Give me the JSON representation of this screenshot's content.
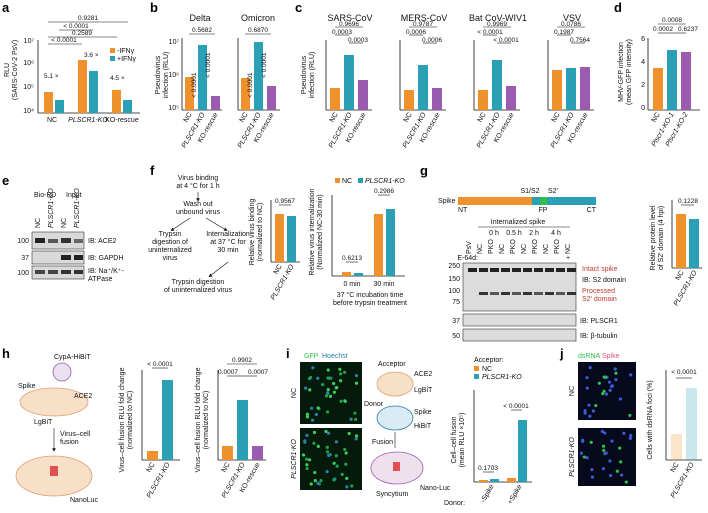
{
  "figure": {
    "panels": {
      "a": {
        "label": "a",
        "ylabel": "RLU\n(SARS-CoV-2 PsV)",
        "legend": [
          "-IFNγ",
          "+IFNγ"
        ],
        "categories": [
          "NC",
          "PLSCR1-KO",
          "KO-rescue"
        ],
        "pvalues": [
          "0.9281",
          "< 0.0001",
          "0.2589",
          "< 0.0001"
        ],
        "folds": [
          "5.1 ×",
          "3.6 ×",
          "4.5 ×"
        ],
        "yticks": [
          "10⁴",
          "10⁵",
          "10⁶",
          "10⁷"
        ]
      },
      "b": {
        "label": "b",
        "ylabel": "Pseudovirus\ninfection (RLU)",
        "titles": [
          "Delta",
          "Omicron"
        ],
        "pvalues_top": [
          "0.5682",
          "0.6870"
        ],
        "pvalues_side": [
          "< 0.0001",
          "< 0.0001",
          "< 0.0001",
          "< 0.0001"
        ],
        "categories": [
          "NC",
          "PLSCR1-KO",
          "KO-rescue"
        ],
        "yticks": [
          "10⁵",
          "10⁶",
          "10⁷"
        ]
      },
      "c": {
        "label": "c",
        "ylabel": "Pseudovirus\ninfection (RLU)",
        "titles": [
          "SARS-CoV",
          "MERS-CoV",
          "Bat CoV-WIV1",
          "VSV"
        ],
        "pvalues": [
          [
            "0.9696",
            "0.0003",
            "0.0003"
          ],
          [
            "0.9787",
            "0.0006",
            "0.0006"
          ],
          [
            "0.9969",
            "< 0.0001",
            "< 0.0001"
          ],
          [
            "0.0786",
            "0.1987",
            "0.7564"
          ]
        ],
        "categories": [
          "NC",
          "PLSCR1-KO",
          "KO-rescue"
        ]
      },
      "d": {
        "label": "d",
        "ylabel": "MHV-GFP infection\n(mean GFP intensity)",
        "pvalues": [
          "0.0008",
          "0.0002",
          "0.6237"
        ],
        "categories": [
          "NC",
          "Plscr1-KO-1",
          "Plscr1-KO-2"
        ],
        "yticks": [
          "0",
          "2",
          "4",
          "6"
        ]
      },
      "e": {
        "label": "e",
        "header": [
          "Bio-PD",
          "Input"
        ],
        "lanes": [
          "NC",
          "PLSCR1-KO",
          "NC",
          "PLSCR1-KO"
        ],
        "blots": [
          "IB: ACE2",
          "IB: GAPDH",
          "IB: Na⁺/K⁺-\nATPase"
        ],
        "markers": [
          "100",
          "37",
          "100"
        ]
      },
      "f": {
        "label": "f",
        "flow": [
          "Virus binding\nat 4 °C for 1 h",
          "Wash out\nunbound virus",
          "Trypsin\ndigestion of\nuninternalized\nvirus",
          "Internalization\nat 37 °C for\n30 min",
          "Trypsin digestion\nof uninternalized virus"
        ],
        "binding_ylabel": "Relative virus binding\n(normalized to NC)",
        "binding_pvalue": "0.9567",
        "internal_ylabel": "Relative virus internalization\n(Normalized NC-30 min)",
        "legend": [
          "NC",
          "PLSCR1-KO"
        ],
        "internal_pvalues": [
          "0.6213",
          "0.2986"
        ],
        "xcats": [
          "0 min",
          "30 min"
        ],
        "xlabel": "37 °C incubation time\nbefore trypsin treatment"
      },
      "g": {
        "label": "g",
        "domain_labels": [
          "Spike",
          "S1/S2",
          "S2′",
          "NT",
          "FP",
          "CT"
        ],
        "header": "Internalized spike",
        "times": [
          "0 h",
          "0.5 h",
          "2 h",
          "4 h"
        ],
        "lanes": [
          "PsV",
          "NC",
          "PKO",
          "NC",
          "PKO",
          "NC",
          "PKO",
          "NC",
          "PKO",
          "NC"
        ],
        "e64d": "E-64d:",
        "annotations": [
          "Intact spike",
          "IB: S2 domain",
          "Processed\nS2′ domain",
          "IB: PLSCR1",
          "IB: β-tubulin"
        ],
        "markers": [
          "250",
          "150",
          "100",
          "75",
          "37",
          "50"
        ],
        "ylabel": "Relative protein level\nof S2′ domain (4 hpi)",
        "pvalue": "0.1228",
        "categories": [
          "NC",
          "PLSCR1-KO"
        ]
      },
      "h": {
        "label": "h",
        "cartoon": [
          "CypA-HiBiT",
          "Spike",
          "ACE2",
          "LgBiT",
          "Virus–cell\nfusion",
          "NanoLuc"
        ],
        "ylabel1": "Virus–cell fusion RLU fold change\n(normalized to NC)",
        "pvalue1": "< 0.0001",
        "cats1": [
          "NC",
          "PLSCR1-KO"
        ],
        "ylabel2": "Virus–cell fusion RLU fold change\n(normalized to NC)",
        "pvalues2": [
          "0.9902",
          "0.0007",
          "0.0007"
        ],
        "cats2": [
          "NC",
          "PLSCR1-KO",
          "KO-rescue"
        ]
      },
      "i": {
        "label": "i",
        "stain": [
          "GFP",
          "Hoechst"
        ],
        "rows": [
          "NC",
          "PLSCR1-KO"
        ],
        "cartoon": [
          "Acceptor",
          "ACE2",
          "LgBiT",
          "Donor",
          "Spike",
          "HiBiT",
          "Fusion",
          "Syncytium",
          "Nano-Luc"
        ],
        "acceptor_legend": [
          "Acceptor:",
          "NC",
          "PLSCR1-KO"
        ],
        "ylabel": "Cell–cell fusion\n(mean RLU ×10⁵)",
        "pvalues": [
          "0.1703",
          "< 0.0001"
        ],
        "donor": [
          "Donor:",
          "-Spike",
          "+Spike"
        ]
      },
      "j": {
        "label": "j",
        "stain": [
          "dsRNA",
          "Spike"
        ],
        "rows": [
          "NC",
          "PLSCR1-KO"
        ],
        "ylabel": "Cells with dsRNA foci (%)",
        "pvalue": "< 0.0001",
        "categories": [
          "NC",
          "PLSCR1-KO"
        ]
      }
    },
    "colors": {
      "nc": "#f0922b",
      "ko": "#2b9fb3",
      "rescue": "#9a5bb0",
      "spike_blue": "#2c7fa8",
      "green": "#2fbf4a"
    }
  }
}
